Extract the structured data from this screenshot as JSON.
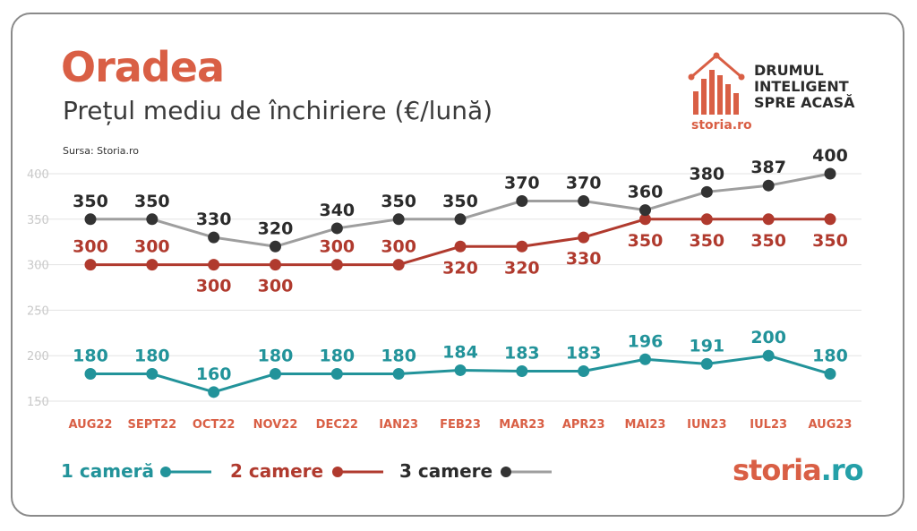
{
  "title": "Oradea",
  "subtitle": "Prețul mediu de închiriere (€/lună)",
  "source": "Sursa: Storia.ro",
  "logo": {
    "tagline": "DRUMUL\nINTELIGENT\nSPRE ACASĂ",
    "small_brand": "storia.ro",
    "icon": "house-bars-icon"
  },
  "brand": {
    "part1": "storia",
    "part2": ".ro"
  },
  "colors": {
    "one_room": "#22939a",
    "two_rooms": "#b03a2e",
    "three_rooms": "#9e9e9e",
    "three_dot": "#333333",
    "accent": "#d95f45",
    "grid": "#e3e3e3"
  },
  "chart_data": {
    "type": "line",
    "categories": [
      "AUG22",
      "SEPT22",
      "OCT22",
      "NOV22",
      "DEC22",
      "IAN23",
      "FEB23",
      "MAR23",
      "APR23",
      "MAI23",
      "IUN23",
      "IUL23",
      "AUG23"
    ],
    "series": [
      {
        "name": "1 cameră",
        "values": [
          180,
          180,
          160,
          180,
          180,
          180,
          184,
          183,
          183,
          196,
          191,
          200,
          180
        ]
      },
      {
        "name": "2 camere",
        "values": [
          300,
          300,
          300,
          300,
          300,
          300,
          320,
          320,
          330,
          350,
          350,
          350,
          350
        ]
      },
      {
        "name": "3 camere",
        "values": [
          350,
          350,
          330,
          320,
          340,
          350,
          350,
          370,
          370,
          360,
          380,
          387,
          400
        ]
      }
    ],
    "y_ticks": [
      150,
      200,
      250,
      300,
      350,
      400
    ],
    "ylim": [
      150,
      400
    ],
    "legend_position": "bottom-left",
    "grid": true
  }
}
